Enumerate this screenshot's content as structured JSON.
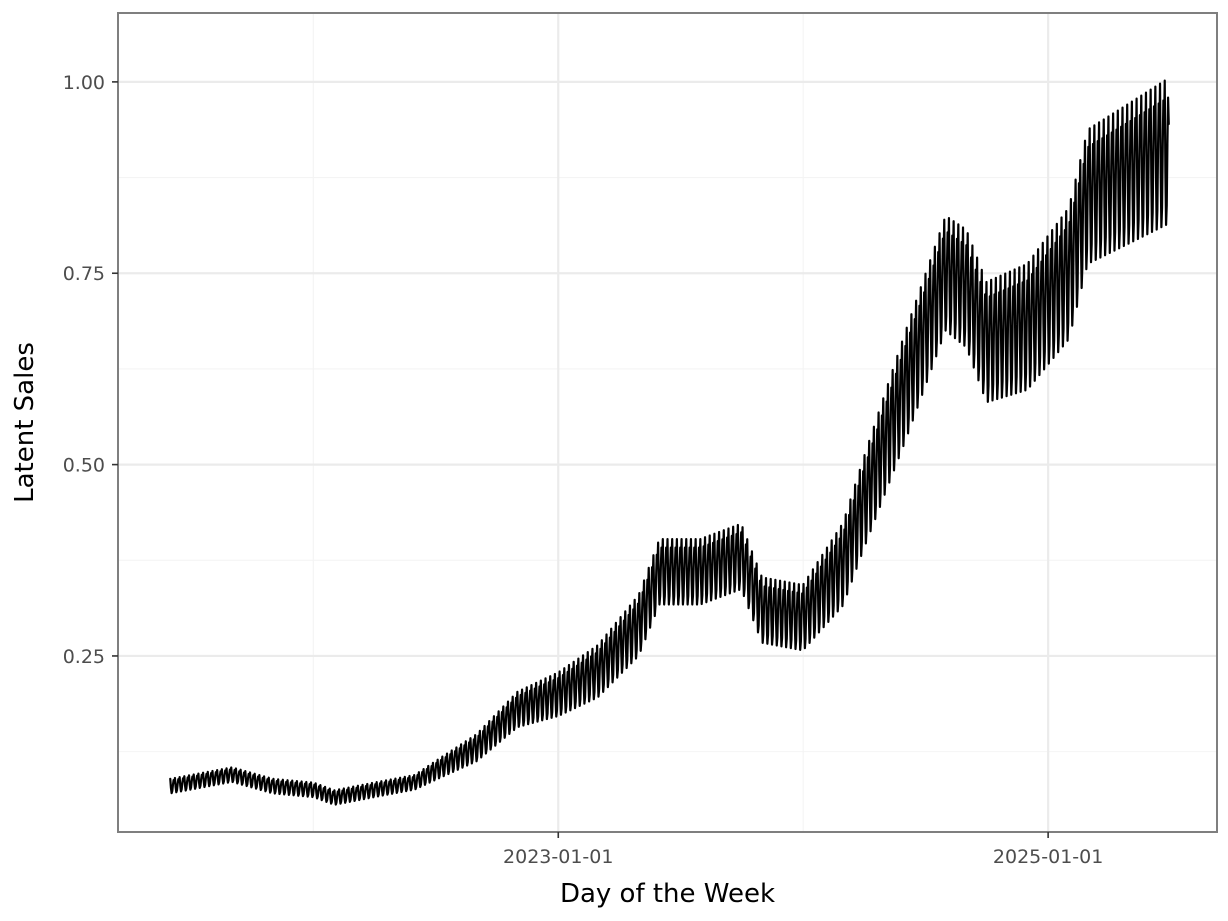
{
  "chart_data": {
    "type": "line",
    "title": "",
    "xlabel": "Day of the Week",
    "ylabel": "Latent Sales",
    "x_axis_type": "date",
    "xlim": [
      "2021-03-15",
      "2025-09-10"
    ],
    "ylim": [
      0.02,
      1.09
    ],
    "x_ticks": [
      {
        "value": "2023-01-01",
        "label": "2023-01-01"
      },
      {
        "value": "2025-01-01",
        "label": "2025-01-01"
      }
    ],
    "y_ticks": [
      {
        "value": 0.25,
        "label": "0.25"
      },
      {
        "value": 0.5,
        "label": "0.50"
      },
      {
        "value": 0.75,
        "label": "0.75"
      },
      {
        "value": 1.0,
        "label": "1.00"
      }
    ],
    "grid": true,
    "line_color": "#000000",
    "seasonal_pattern": "weekly",
    "series": [
      {
        "x_start": "2021-06-01",
        "x_end": "2025-06-30",
        "trend": [
          {
            "x": "2021-06-01",
            "y": 0.08
          },
          {
            "x": "2021-09-01",
            "y": 0.095
          },
          {
            "x": "2021-11-01",
            "y": 0.08
          },
          {
            "x": "2022-01-01",
            "y": 0.075
          },
          {
            "x": "2022-02-01",
            "y": 0.065
          },
          {
            "x": "2022-04-01",
            "y": 0.075
          },
          {
            "x": "2022-06-01",
            "y": 0.085
          },
          {
            "x": "2022-07-01",
            "y": 0.1
          },
          {
            "x": "2022-09-01",
            "y": 0.13
          },
          {
            "x": "2022-11-01",
            "y": 0.18
          },
          {
            "x": "2022-12-01",
            "y": 0.19
          },
          {
            "x": "2023-01-01",
            "y": 0.2
          },
          {
            "x": "2023-03-01",
            "y": 0.23
          },
          {
            "x": "2023-05-01",
            "y": 0.29
          },
          {
            "x": "2023-06-01",
            "y": 0.36
          },
          {
            "x": "2023-08-01",
            "y": 0.36
          },
          {
            "x": "2023-10-01",
            "y": 0.38
          },
          {
            "x": "2023-11-01",
            "y": 0.31
          },
          {
            "x": "2024-01-01",
            "y": 0.3
          },
          {
            "x": "2024-03-01",
            "y": 0.37
          },
          {
            "x": "2024-04-01",
            "y": 0.45
          },
          {
            "x": "2024-06-01",
            "y": 0.6
          },
          {
            "x": "2024-08-01",
            "y": 0.75
          },
          {
            "x": "2024-09-01",
            "y": 0.73
          },
          {
            "x": "2024-10-01",
            "y": 0.66
          },
          {
            "x": "2024-12-01",
            "y": 0.68
          },
          {
            "x": "2025-02-01",
            "y": 0.75
          },
          {
            "x": "2025-03-01",
            "y": 0.85
          },
          {
            "x": "2025-05-01",
            "y": 0.88
          },
          {
            "x": "2025-06-30",
            "y": 0.91
          }
        ],
        "weekly_amplitude": [
          {
            "x": "2021-06-01",
            "y": 0.01
          },
          {
            "x": "2022-06-01",
            "y": 0.01
          },
          {
            "x": "2023-01-01",
            "y": 0.03
          },
          {
            "x": "2023-06-01",
            "y": 0.045
          },
          {
            "x": "2024-01-01",
            "y": 0.045
          },
          {
            "x": "2024-06-01",
            "y": 0.075
          },
          {
            "x": "2025-06-30",
            "y": 0.1
          }
        ]
      }
    ]
  }
}
